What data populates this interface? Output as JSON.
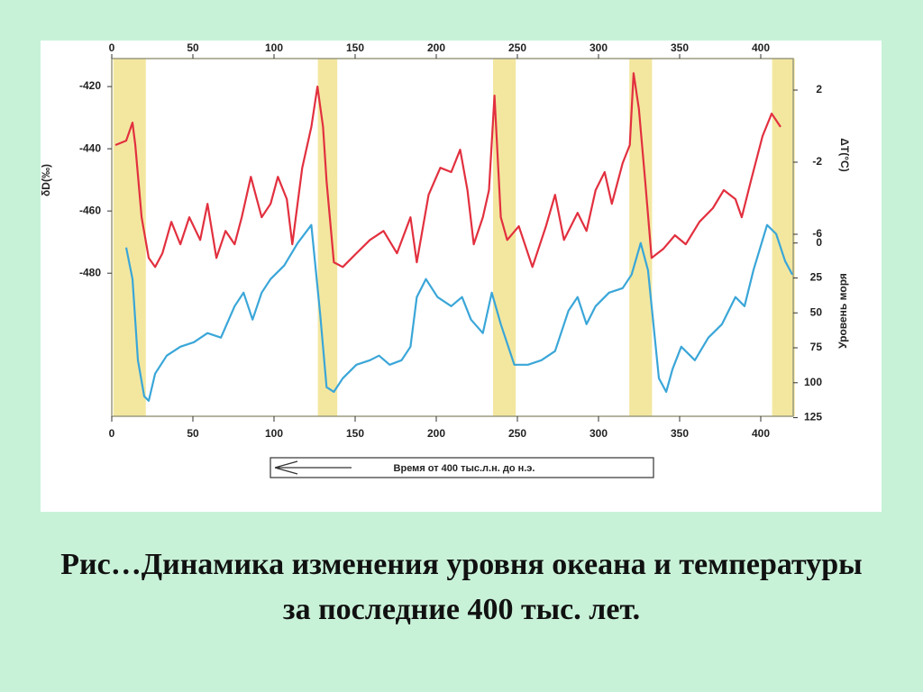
{
  "chart_data": {
    "type": "line",
    "xlim": [
      0,
      420
    ],
    "xticks": [
      0,
      50,
      100,
      150,
      200,
      250,
      300,
      350,
      400
    ],
    "ylim": [
      -526,
      -411
    ],
    "yticks": [
      -420,
      -440,
      -460,
      -480
    ],
    "ylabel": "δD(‰)",
    "y2lim": [
      -16.1,
      3.75
    ],
    "y2ticks": [
      2,
      -2,
      -6
    ],
    "y2label": "ΔT(°C)",
    "y3lim": [
      124,
      -132
    ],
    "y3ticks": [
      0,
      25,
      50,
      75,
      100,
      125
    ],
    "y3label": "Уровень моря",
    "shaded_intervals": [
      [
        1,
        21
      ],
      [
        127,
        139
      ],
      [
        235,
        249
      ],
      [
        319,
        333
      ],
      [
        407,
        421
      ]
    ],
    "shade_color": "#f3e7a0",
    "series": [
      {
        "color": "#e2303f",
        "axis": "y",
        "x": [
          2.2,
          8.9,
          12.8,
          14.5,
          18.4,
          22.8,
          26.7,
          31.2,
          36.7,
          42.3,
          47.8,
          54.5,
          59.0,
          64.5,
          70.1,
          75.7,
          80.1,
          85.7,
          92.4,
          97.9,
          102.4,
          107.9,
          111.3,
          117.4,
          123.0,
          126.8,
          130.2,
          132.4,
          136.9,
          142.4,
          150.8,
          159.1,
          167.5,
          175.8,
          184.1,
          188.0,
          195.3,
          202.5,
          209.2,
          214.7,
          219.2,
          223.1,
          228.7,
          232.5,
          235.9,
          239.8,
          243.7,
          250.9,
          259.3,
          267.6,
          273.2,
          278.7,
          287.1,
          292.6,
          298.2,
          303.8,
          308.2,
          314.9,
          319.3,
          321.6,
          324.9,
          328.8,
          332.7,
          339.9,
          347.1,
          353.8,
          362.2,
          370.5,
          377.2,
          384.4,
          388.3,
          393.9,
          401.1,
          406.7,
          412.2
        ],
        "values": [
          -438.8,
          -437.4,
          -431.6,
          -438.8,
          -462.0,
          -475.1,
          -478.0,
          -473.6,
          -463.5,
          -470.7,
          -462.0,
          -469.3,
          -457.7,
          -475.1,
          -466.4,
          -470.7,
          -462.0,
          -449.0,
          -462.0,
          -457.7,
          -449.0,
          -456.2,
          -470.7,
          -446.1,
          -433.0,
          -420.0,
          -433.0,
          -450.4,
          -476.5,
          -478.0,
          -473.6,
          -469.3,
          -466.4,
          -473.6,
          -462.0,
          -476.5,
          -454.8,
          -446.1,
          -447.5,
          -440.3,
          -453.3,
          -470.7,
          -462.0,
          -453.3,
          -422.9,
          -462.0,
          -469.3,
          -464.9,
          -478.0,
          -464.9,
          -454.8,
          -469.3,
          -460.6,
          -466.4,
          -453.3,
          -447.5,
          -457.7,
          -444.6,
          -438.8,
          -415.7,
          -427.2,
          -450.4,
          -475.1,
          -472.2,
          -467.8,
          -470.7,
          -463.5,
          -459.1,
          -453.3,
          -456.2,
          -462.0,
          -450.4,
          -435.9,
          -428.7,
          -433.0
        ]
      },
      {
        "color": "#3aa6d8",
        "axis": "y3",
        "x": [
          8.9,
          12.8,
          16.1,
          20.0,
          22.8,
          26.7,
          33.9,
          42.3,
          50.6,
          59.0,
          67.3,
          75.7,
          81.2,
          86.8,
          92.4,
          97.9,
          106.3,
          114.6,
          123.0,
          128.5,
          132.4,
          136.9,
          142.4,
          150.8,
          159.1,
          164.7,
          171.3,
          178.6,
          184.1,
          188.0,
          193.6,
          200.8,
          209.2,
          215.9,
          221.4,
          228.7,
          234.2,
          239.8,
          248.1,
          256.5,
          264.8,
          273.2,
          281.5,
          287.1,
          292.6,
          298.2,
          306.5,
          314.9,
          320.4,
          326.0,
          330.5,
          337.2,
          341.7,
          345.6,
          351.0,
          359.4,
          367.7,
          376.1,
          384.4,
          390.0,
          395.5,
          403.9,
          409.5,
          415.0,
          419.5
        ],
        "values": [
          3.2,
          25.8,
          83.9,
          109.7,
          112.9,
          93.5,
          80.6,
          74.2,
          71.0,
          64.5,
          67.7,
          45.2,
          35.5,
          54.8,
          35.5,
          25.8,
          16.1,
          0,
          -12.9,
          51.6,
          103.2,
          106.5,
          96.8,
          87.1,
          83.9,
          80.6,
          87.1,
          83.9,
          74.2,
          38.7,
          25.8,
          38.7,
          45.2,
          38.7,
          54.8,
          64.5,
          35.5,
          58.1,
          87.1,
          87.1,
          83.9,
          77.4,
          48.4,
          38.7,
          58.1,
          45.2,
          35.5,
          32.3,
          22.6,
          0,
          19.4,
          96.8,
          106.5,
          90.3,
          74.2,
          83.9,
          67.7,
          58.1,
          38.7,
          45.2,
          19.4,
          -12.9,
          -6.5,
          12.9,
          22.6
        ]
      }
    ],
    "time_arrow_label": "Время от 400 тыс.л.н. до н.э."
  },
  "caption": "Рис…Динамика изменения уровня океана и температуры за последние 400 тыс. лет."
}
